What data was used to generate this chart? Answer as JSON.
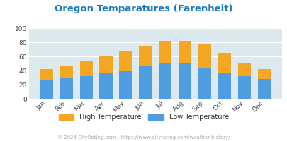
{
  "months": [
    "Jan",
    "Feb",
    "Mar",
    "Apr",
    "May",
    "Jun",
    "Jul",
    "Aug",
    "Sep",
    "Oct",
    "Nov",
    "Dec"
  ],
  "high_temps": [
    42,
    47,
    54,
    61,
    68,
    75,
    82,
    82,
    78,
    65,
    50,
    42
  ],
  "low_temps": [
    27,
    30,
    32,
    36,
    40,
    47,
    51,
    50,
    44,
    37,
    32,
    28
  ],
  "bar_color_low": "#4d9de0",
  "bar_color_high": "#f5a623",
  "title": "Oregon Temparatures (Farenheit)",
  "title_color": "#1a7abf",
  "plot_bg_color": "#dce9ef",
  "ylim": [
    0,
    100
  ],
  "yticks": [
    0,
    20,
    40,
    60,
    80,
    100
  ],
  "legend_label_high": "High Temperature",
  "legend_label_low": "Low Temperature",
  "footer_text": "© 2024 CityRating.com - https://www.cityrating.com/weather-history/",
  "footer_color": "#aaaaaa",
  "grid_color": "#ffffff"
}
